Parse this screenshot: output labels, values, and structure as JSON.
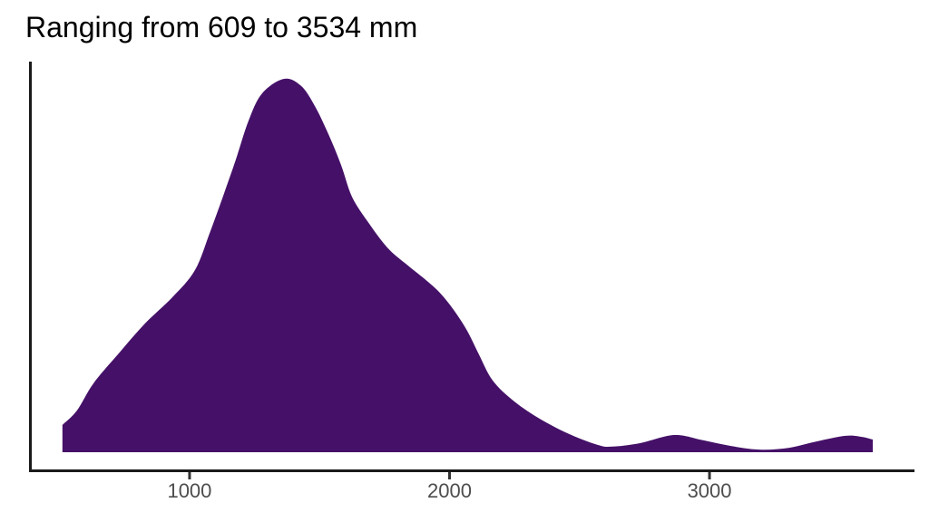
{
  "title": {
    "text": "Ranging from 609 to 3534 mm"
  },
  "colors": {
    "density_fill": "#451168",
    "axis": "#1a1a1a",
    "tick": "#333333",
    "tick_label": "#4d4d4d",
    "title": "#000000",
    "background": "#ffffff"
  },
  "chart_data": {
    "type": "area",
    "subtype": "density",
    "title": "Ranging from 609 to 3534 mm",
    "xlabel": "",
    "ylabel": "",
    "x_unit": "mm",
    "data_range": {
      "min": 609,
      "max": 3534
    },
    "x_ticks": [
      1000,
      2000,
      3000
    ],
    "y_ticks": [],
    "xlim": [
      386,
      3785
    ],
    "ylim": [
      0,
      1.05
    ],
    "grid": false,
    "legend": false,
    "y_values_note": "density normalized so main peak = 1.0; peak located near x = 1363 mm",
    "series": [
      {
        "name": "density",
        "start_edge": {
          "x": 511,
          "height": 0.073
        },
        "end_edge": {
          "x": 3628,
          "height": 0.034
        },
        "points": [
          [
            511,
            0.073
          ],
          [
            567,
            0.112
          ],
          [
            630,
            0.184
          ],
          [
            724,
            0.262
          ],
          [
            829,
            0.345
          ],
          [
            934,
            0.415
          ],
          [
            1021,
            0.488
          ],
          [
            1080,
            0.592
          ],
          [
            1133,
            0.694
          ],
          [
            1178,
            0.784
          ],
          [
            1227,
            0.888
          ],
          [
            1279,
            0.961
          ],
          [
            1363,
            1.0
          ],
          [
            1429,
            0.981
          ],
          [
            1482,
            0.927
          ],
          [
            1534,
            0.852
          ],
          [
            1583,
            0.769
          ],
          [
            1625,
            0.684
          ],
          [
            1691,
            0.612
          ],
          [
            1761,
            0.548
          ],
          [
            1831,
            0.505
          ],
          [
            1904,
            0.464
          ],
          [
            1963,
            0.427
          ],
          [
            2016,
            0.381
          ],
          [
            2068,
            0.325
          ],
          [
            2113,
            0.262
          ],
          [
            2166,
            0.192
          ],
          [
            2249,
            0.136
          ],
          [
            2354,
            0.087
          ],
          [
            2469,
            0.046
          ],
          [
            2574,
            0.019
          ],
          [
            2626,
            0.015
          ],
          [
            2731,
            0.024
          ],
          [
            2864,
            0.046
          ],
          [
            2975,
            0.032
          ],
          [
            3080,
            0.017
          ],
          [
            3192,
            0.007
          ],
          [
            3307,
            0.012
          ],
          [
            3412,
            0.029
          ],
          [
            3523,
            0.044
          ],
          [
            3586,
            0.041
          ],
          [
            3628,
            0.034
          ]
        ]
      }
    ]
  }
}
